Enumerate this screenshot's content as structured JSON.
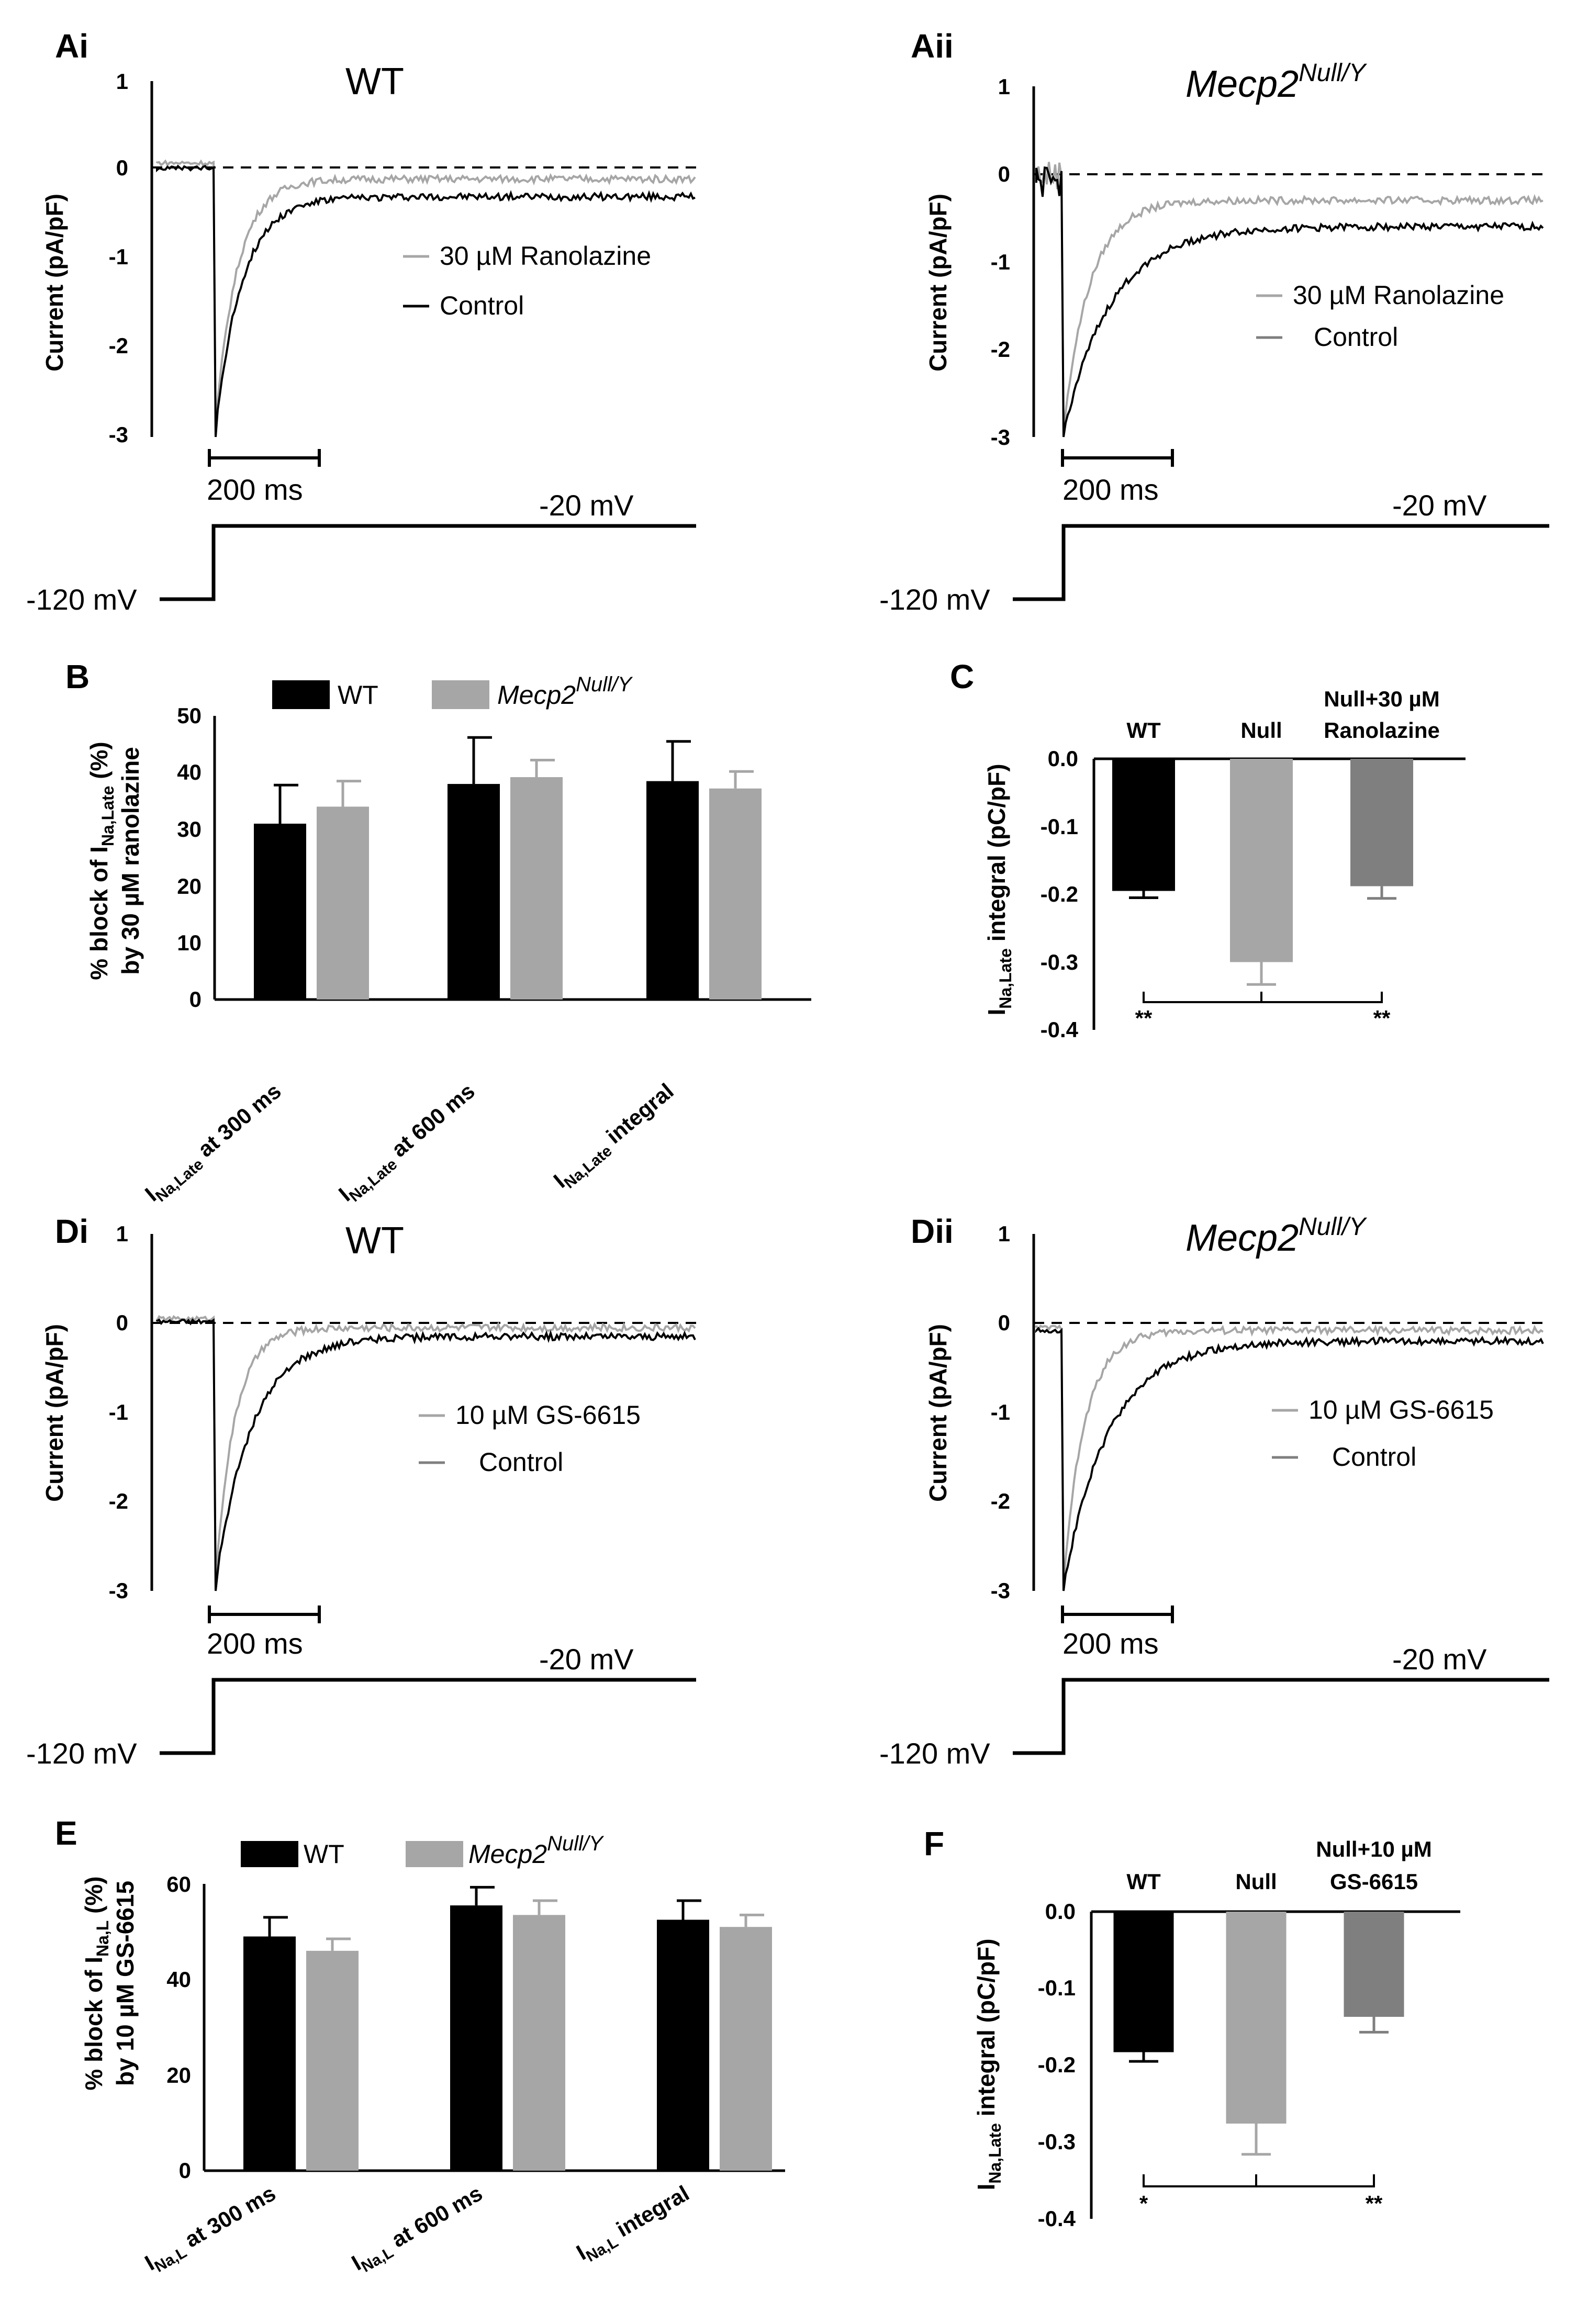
{
  "figure": {
    "panels": {
      "Ai": "Ai",
      "Aii": "Aii",
      "B": "B",
      "C": "C",
      "Di": "Di",
      "Dii": "Dii",
      "E": "E",
      "F": "F"
    },
    "genotype_wt": "WT",
    "genotype_null_base": "Mecp2",
    "genotype_null_sup": "Null/Y",
    "scalebar": "200 ms",
    "holding": "-120 mV",
    "step": "-20 mV",
    "trace_ylabel": "Current (pA/pF)",
    "legend_ranolazine": "30 µM Ranolazine",
    "legend_gs": "10 µM GS-6615",
    "legend_control": "Control"
  },
  "colors": {
    "black": "#000000",
    "light": "#a6a6a6",
    "dark": "#7f7f7f"
  },
  "chart_data": [
    {
      "id": "Ai",
      "type": "line",
      "title": "WT",
      "ylabel": "Current (pA/pF)",
      "ylim": [
        -3,
        1
      ],
      "yticks": [
        "1",
        "0",
        "-1",
        "-2",
        "-3"
      ],
      "series": [
        {
          "name": "30 µM Ranolazine",
          "color": "#a6a6a6",
          "baseline": 0.08,
          "peak": -3,
          "late": -0.1,
          "tau": 0.18
        },
        {
          "name": "Control",
          "color": "#000000",
          "baseline": 0.02,
          "peak": -3,
          "late": -0.3,
          "tau": 0.22
        }
      ]
    },
    {
      "id": "Aii",
      "type": "line",
      "title": "Mecp2 Null/Y",
      "ylabel": "Current (pA/pF)",
      "ylim": [
        -3,
        1
      ],
      "yticks": [
        "1",
        "0",
        "-1",
        "-2",
        "-3"
      ],
      "series": [
        {
          "name": "30 µM Ranolazine",
          "color": "#a6a6a6",
          "baseline": 0.0,
          "peak": -3,
          "late": -0.3,
          "tau": 0.22
        },
        {
          "name": "Control",
          "color": "#000000",
          "baseline": -0.1,
          "peak": -3,
          "late": -0.6,
          "tau": 0.4
        }
      ]
    },
    {
      "id": "B",
      "type": "bar",
      "ylabel_line1": "% block of I",
      "ylabel_sub": "Na,Late",
      "ylabel_tail": " (%)",
      "ylabel_line2": "by 30 µM ranolazine",
      "ylim": [
        0,
        50
      ],
      "yticks": [
        "0",
        "10",
        "20",
        "30",
        "40",
        "50"
      ],
      "category_main": [
        "I",
        "I",
        "I"
      ],
      "category_sub": [
        "Na,Late",
        "Na,Late",
        "Na,Late"
      ],
      "category_tail": [
        " at 300 ms",
        " at 600 ms",
        " integral"
      ],
      "series": [
        {
          "name": "WT",
          "color": "#000000",
          "values": [
            31,
            38,
            38.5
          ],
          "errors": [
            6.8,
            8.2,
            7
          ]
        },
        {
          "name": "Mecp2 Null/Y",
          "color": "#a6a6a6",
          "values": [
            34,
            39.2,
            37.2
          ],
          "errors": [
            4.5,
            3,
            3
          ]
        }
      ]
    },
    {
      "id": "C",
      "type": "bar",
      "ylabel_main": "I",
      "ylabel_sub": "Na,Late",
      "ylabel_tail": " integral (pC/pF)",
      "ylim": [
        -0.4,
        0.0
      ],
      "yticks": [
        "0.0",
        "-0.1",
        "-0.2",
        "-0.3",
        "-0.4"
      ],
      "categories": [
        "WT",
        "Null",
        "Null+30 µM",
        "Ranolazine"
      ],
      "bars": [
        {
          "name": "WT",
          "color": "#000000",
          "value": -0.195,
          "error": 0.01
        },
        {
          "name": "Null",
          "color": "#a6a6a6",
          "value": -0.3,
          "error": 0.033
        },
        {
          "name": "Null+30 µM Ranolazine",
          "color": "#7f7f7f",
          "value": -0.188,
          "error": 0.018
        }
      ],
      "significance": [
        "**",
        "**"
      ]
    },
    {
      "id": "Di",
      "type": "line",
      "title": "WT",
      "ylabel": "Current (pA/pF)",
      "ylim": [
        -3,
        1
      ],
      "yticks": [
        "1",
        "0",
        "-1",
        "-2",
        "-3"
      ],
      "series": [
        {
          "name": "10 µM GS-6615",
          "color": "#a6a6a6",
          "baseline": 0.05,
          "peak": -3,
          "late": -0.05,
          "tau": 0.16
        },
        {
          "name": "Control",
          "color": "#000000",
          "baseline": 0.02,
          "peak": -3,
          "late": -0.15,
          "tau": 0.3
        }
      ]
    },
    {
      "id": "Dii",
      "type": "line",
      "title": "Mecp2 Null/Y",
      "ylabel": "Current (pA/pF)",
      "ylim": [
        -3,
        1
      ],
      "yticks": [
        "1",
        "0",
        "-1",
        "-2",
        "-3"
      ],
      "series": [
        {
          "name": "10 µM GS-6615",
          "color": "#a6a6a6",
          "baseline": -0.05,
          "peak": -3,
          "late": -0.08,
          "tau": 0.18
        },
        {
          "name": "Control",
          "color": "#000000",
          "baseline": -0.08,
          "peak": -3,
          "late": -0.2,
          "tau": 0.38
        }
      ]
    },
    {
      "id": "E",
      "type": "bar",
      "ylabel_line1": "% block of I",
      "ylabel_sub": "Na,L",
      "ylabel_tail": " (%)",
      "ylabel_line2": "by 10 µM GS-6615",
      "ylim": [
        0,
        60
      ],
      "yticks": [
        "0",
        "20",
        "40",
        "60"
      ],
      "category_main": [
        "I",
        "I",
        "I"
      ],
      "category_sub": [
        "Na,L",
        "Na,L",
        "Na,L"
      ],
      "category_tail": [
        " at 300 ms",
        " at 600 ms",
        " integral"
      ],
      "series": [
        {
          "name": "WT",
          "color": "#000000",
          "values": [
            49,
            55.5,
            52.5
          ],
          "errors": [
            4,
            3.8,
            4
          ]
        },
        {
          "name": "Mecp2 Null/Y",
          "color": "#a6a6a6",
          "values": [
            46,
            53.5,
            51
          ],
          "errors": [
            2.5,
            3,
            2.5
          ]
        }
      ]
    },
    {
      "id": "F",
      "type": "bar",
      "ylabel_main": "I",
      "ylabel_sub": "Na,Late",
      "ylabel_tail": " integral (pC/pF)",
      "ylim": [
        -0.4,
        0.0
      ],
      "yticks": [
        "0.0",
        "-0.1",
        "-0.2",
        "-0.3",
        "-0.4"
      ],
      "categories": [
        "WT",
        "Null",
        "Null+10 µM",
        "GS-6615"
      ],
      "bars": [
        {
          "name": "WT",
          "color": "#000000",
          "value": -0.183,
          "error": 0.012
        },
        {
          "name": "Null",
          "color": "#a6a6a6",
          "value": -0.276,
          "error": 0.04
        },
        {
          "name": "Null+10 µM GS-6615",
          "color": "#7f7f7f",
          "value": -0.137,
          "error": 0.02
        }
      ],
      "significance": [
        "*",
        "**"
      ]
    }
  ]
}
